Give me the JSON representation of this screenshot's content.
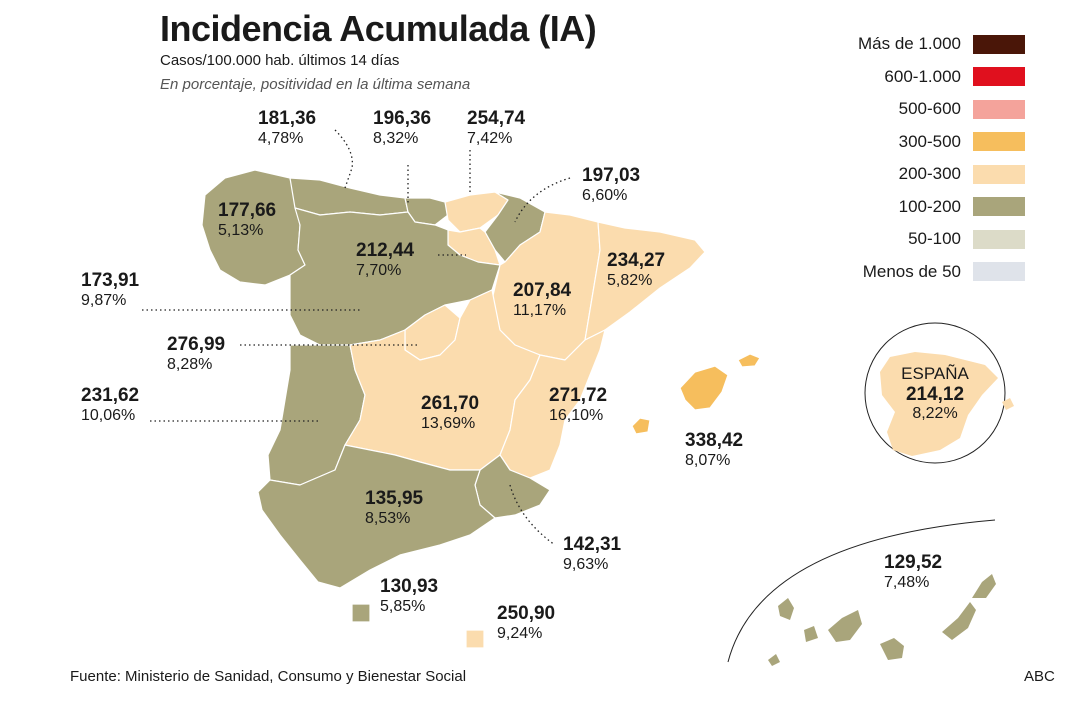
{
  "header": {
    "title": "Incidencia Acumulada (IA)",
    "subtitle": "Casos/100.000 hab. últimos 14 días",
    "note": "En porcentaje, positividad en la última semana"
  },
  "legend": [
    {
      "label": "Más de 1.000",
      "color": "#4a1608"
    },
    {
      "label": "600-1.000",
      "color": "#e0101e"
    },
    {
      "label": "500-600",
      "color": "#f4a39b"
    },
    {
      "label": "300-500",
      "color": "#f6be5d"
    },
    {
      "label": "200-300",
      "color": "#fbdcae"
    },
    {
      "label": "100-200",
      "color": "#a9a57b"
    },
    {
      "label": "50-100",
      "color": "#dcdbc8"
    },
    {
      "label": "Menos de 50",
      "color": "#dfe3ea"
    }
  ],
  "regions": {
    "galicia": {
      "value": "177,66",
      "pct": "5,13%"
    },
    "asturias": {
      "value": "181,36",
      "pct": "4,78%"
    },
    "cantabria": {
      "value": "196,36",
      "pct": "8,32%"
    },
    "pais_vasco": {
      "value": "254,74",
      "pct": "7,42%"
    },
    "navarra": {
      "value": "197,03",
      "pct": "6,60%"
    },
    "castilla_leon": {
      "value": "212,44",
      "pct": "7,70%"
    },
    "la_rioja": {
      "value": "173,91",
      "pct": "9,87%"
    },
    "madrid": {
      "value": "276,99",
      "pct": "8,28%"
    },
    "aragon": {
      "value": "207,84",
      "pct": "11,17%"
    },
    "cataluna": {
      "value": "234,27",
      "pct": "5,82%"
    },
    "extremadura": {
      "value": "231,62",
      "pct": "10,06%"
    },
    "castilla_la_mancha": {
      "value": "261,70",
      "pct": "13,69%"
    },
    "c_valenciana": {
      "value": "271,72",
      "pct": "16,10%"
    },
    "baleares": {
      "value": "338,42",
      "pct": "8,07%"
    },
    "andalucia": {
      "value": "135,95",
      "pct": "8,53%"
    },
    "murcia": {
      "value": "142,31",
      "pct": "9,63%"
    },
    "ceuta": {
      "value": "130,93",
      "pct": "5,85%"
    },
    "melilla": {
      "value": "250,90",
      "pct": "9,24%"
    },
    "canarias": {
      "value": "129,52",
      "pct": "7,48%"
    },
    "espana": {
      "name": "ESPAÑA",
      "value": "214,12",
      "pct": "8,22%"
    }
  },
  "colors": {
    "band_100_200": "#a9a57b",
    "band_200_300": "#fbdcae",
    "band_300_500": "#f6be5d"
  },
  "footer": {
    "source": "Fuente: Ministerio de Sanidad, Consumo y Bienestar Social",
    "credit": "ABC"
  }
}
